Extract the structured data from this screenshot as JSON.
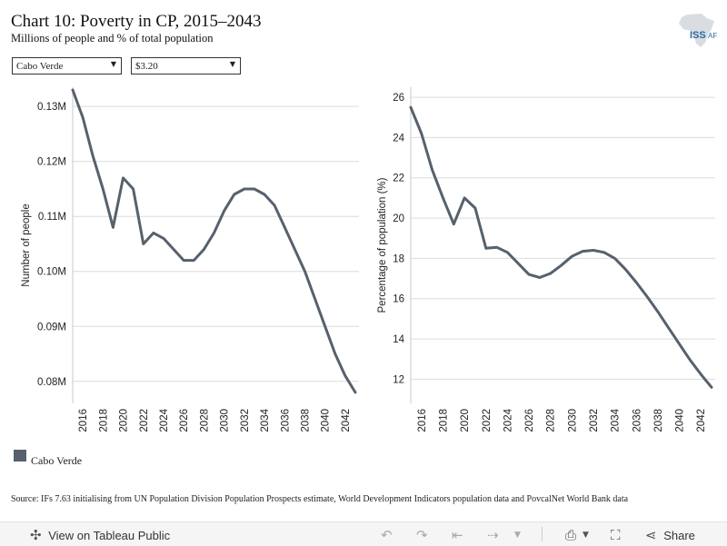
{
  "header": {
    "title": "Chart 10: Poverty in CP, 2015–2043",
    "subtitle": "Millions of people and % of total population",
    "logo_text": "ISS",
    "logo_suffix": "AF"
  },
  "filters": {
    "country": "Cabo Verde",
    "threshold": "$3.20"
  },
  "legend": {
    "label": "Cabo Verde",
    "color": "#56616d"
  },
  "source": "Source: IFs 7.63 initialising from UN Population Division Population Prospects estimate, World Development Indicators population data and PovcalNet World Bank data",
  "footer": {
    "view_label": "View on Tableau Public",
    "share_label": "Share"
  },
  "chart_data": [
    {
      "type": "line",
      "ylabel": "Number of people",
      "ylim": [
        0.076,
        0.1335
      ],
      "yticks": [
        0.08,
        0.09,
        0.1,
        0.11,
        0.12,
        0.13
      ],
      "ytick_labels": [
        "0.08M",
        "0.09M",
        "0.10M",
        "0.11M",
        "0.12M",
        "0.13M"
      ],
      "xlim": [
        2015,
        2043
      ],
      "xticks": [
        2016,
        2018,
        2020,
        2022,
        2024,
        2026,
        2028,
        2030,
        2032,
        2034,
        2036,
        2038,
        2040,
        2042
      ],
      "grid": true,
      "series": [
        {
          "name": "Cabo Verde",
          "x": [
            2015,
            2016,
            2017,
            2018,
            2019,
            2020,
            2021,
            2022,
            2023,
            2024,
            2025,
            2026,
            2027,
            2028,
            2029,
            2030,
            2031,
            2032,
            2033,
            2034,
            2035,
            2036,
            2037,
            2038,
            2039,
            2040,
            2041,
            2042,
            2043
          ],
          "values": [
            0.133,
            0.128,
            0.121,
            0.115,
            0.108,
            0.117,
            0.115,
            0.105,
            0.107,
            0.106,
            0.104,
            0.102,
            0.102,
            0.104,
            0.107,
            0.111,
            0.114,
            0.115,
            0.115,
            0.114,
            0.112,
            0.108,
            0.104,
            0.1,
            0.095,
            0.09,
            0.085,
            0.081,
            0.078
          ]
        }
      ]
    },
    {
      "type": "line",
      "ylabel": "Percentage of population (%)",
      "ylim": [
        10.8,
        26.5
      ],
      "yticks": [
        12,
        14,
        16,
        18,
        20,
        22,
        24,
        26
      ],
      "ytick_labels": [
        "12",
        "14",
        "16",
        "18",
        "20",
        "22",
        "24",
        "26"
      ],
      "xlim": [
        2015,
        2043
      ],
      "xticks": [
        2016,
        2018,
        2020,
        2022,
        2024,
        2026,
        2028,
        2030,
        2032,
        2034,
        2036,
        2038,
        2040,
        2042
      ],
      "grid": true,
      "series": [
        {
          "name": "Cabo Verde",
          "x": [
            2015,
            2016,
            2017,
            2018,
            2019,
            2020,
            2021,
            2022,
            2023,
            2024,
            2025,
            2026,
            2027,
            2028,
            2029,
            2030,
            2031,
            2032,
            2033,
            2034,
            2035,
            2036,
            2037,
            2038,
            2039,
            2040,
            2041,
            2042,
            2043
          ],
          "values": [
            25.5,
            24.2,
            22.4,
            21.0,
            19.7,
            21.0,
            20.5,
            18.5,
            18.55,
            18.3,
            17.75,
            17.2,
            17.05,
            17.25,
            17.65,
            18.1,
            18.35,
            18.4,
            18.3,
            18.0,
            17.45,
            16.8,
            16.1,
            15.35,
            14.55,
            13.75,
            12.95,
            12.25,
            11.6
          ]
        }
      ]
    }
  ]
}
